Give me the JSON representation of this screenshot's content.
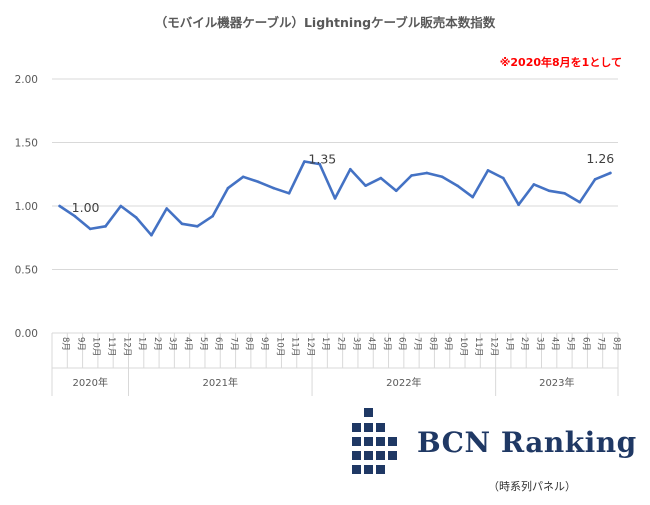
{
  "chart_data": {
    "type": "line",
    "title": "（モバイル機器ケーブル）Lightningケーブル販売本数指数",
    "note": "※2020年8月を1として",
    "yticks": [
      "0.00",
      "0.50",
      "1.00",
      "1.50",
      "2.00"
    ],
    "ylim": [
      0,
      2
    ],
    "grid": true,
    "months": [
      "8月",
      "9月",
      "10月",
      "11月",
      "12月",
      "1月",
      "2月",
      "3月",
      "4月",
      "5月",
      "6月",
      "7月",
      "8月",
      "9月",
      "10月",
      "11月",
      "12月",
      "1月",
      "2月",
      "3月",
      "4月",
      "5月",
      "6月",
      "7月",
      "8月",
      "9月",
      "10月",
      "11月",
      "12月",
      "1月",
      "2月",
      "3月",
      "4月",
      "5月",
      "6月",
      "7月",
      "8月"
    ],
    "years": [
      {
        "label": "2020年",
        "count": 5
      },
      {
        "label": "2021年",
        "count": 12
      },
      {
        "label": "2022年",
        "count": 12
      },
      {
        "label": "2023年",
        "count": 8
      }
    ],
    "series": [
      {
        "color": "#4472c4",
        "values": [
          1.0,
          0.92,
          0.82,
          0.84,
          1.0,
          0.91,
          0.77,
          0.98,
          0.86,
          0.84,
          0.92,
          1.14,
          1.23,
          1.19,
          1.14,
          1.1,
          1.35,
          1.33,
          1.06,
          1.29,
          1.16,
          1.22,
          1.12,
          1.24,
          1.26,
          1.23,
          1.16,
          1.07,
          1.28,
          1.22,
          1.01,
          1.17,
          1.12,
          1.1,
          1.03,
          1.21,
          1.26
        ]
      }
    ],
    "data_labels": [
      {
        "index": 0,
        "text": "1.00"
      },
      {
        "index": 16,
        "text": "1.35"
      },
      {
        "index": 36,
        "text": "1.26"
      }
    ]
  },
  "logo": {
    "text": "BCN Ranking",
    "subtext": "（時系列パネル）",
    "color": "#1f3864"
  }
}
